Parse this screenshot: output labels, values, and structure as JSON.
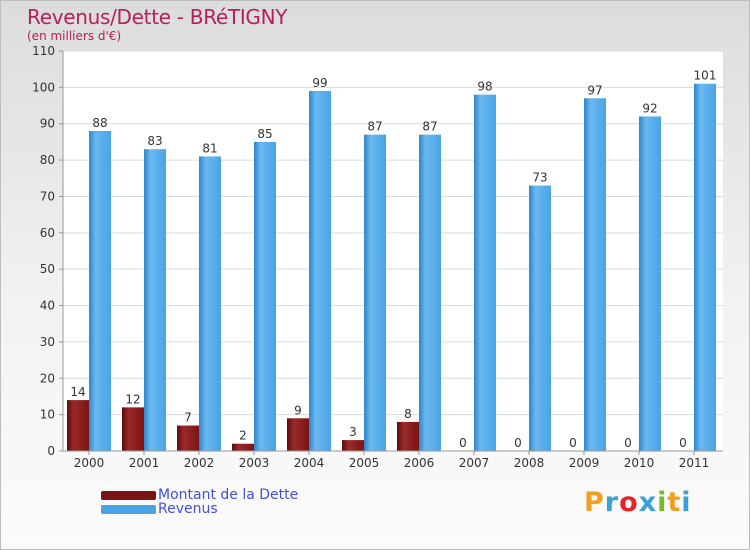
{
  "chart_data": {
    "type": "bar",
    "title": "Revenus/Dette - BRéTIGNY",
    "subtitle": "(en milliers d'€)",
    "categories": [
      "2000",
      "2001",
      "2002",
      "2003",
      "2004",
      "2005",
      "2006",
      "2007",
      "2008",
      "2009",
      "2010",
      "2011"
    ],
    "series": [
      {
        "name": "Montant de la Dette",
        "color": "#7a1414",
        "values": [
          14,
          12,
          7,
          2,
          9,
          3,
          8,
          0,
          0,
          0,
          0,
          0
        ]
      },
      {
        "name": "Revenus",
        "color": "#4aa3e6",
        "values": [
          88,
          83,
          81,
          85,
          99,
          87,
          87,
          98,
          73,
          97,
          92,
          101
        ]
      }
    ],
    "yticks": [
      0,
      10,
      20,
      30,
      40,
      50,
      60,
      70,
      80,
      90,
      100,
      110
    ],
    "ylim": [
      0,
      110
    ],
    "grid": true,
    "legend_position": "bottom-left"
  },
  "logo": {
    "text": "Proxiti",
    "letters": [
      "P",
      "r",
      "o",
      "x",
      "i",
      "t",
      "i"
    ],
    "colors": [
      "#f0a020",
      "#3aa0d8",
      "#e2262a",
      "#3aa0d8",
      "#7ab82e",
      "#f0a020",
      "#3aa0d8"
    ]
  }
}
